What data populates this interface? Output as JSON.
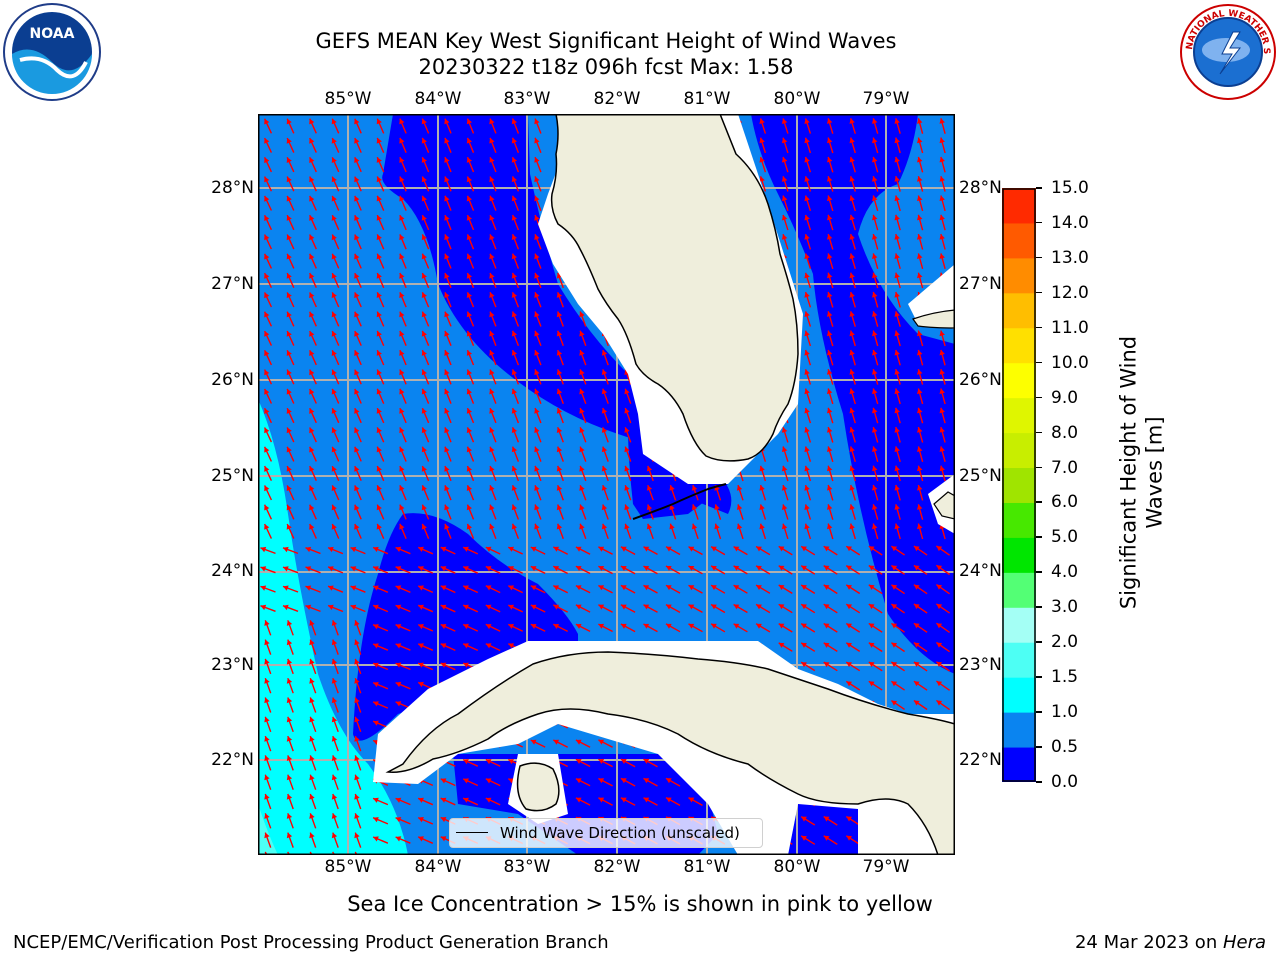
{
  "title": {
    "line1": "GEFS MEAN Key West Significant Height of Wind Waves",
    "line2": "20230322 t18z 096h fcst   Max: 1.58"
  },
  "map": {
    "lon_ticks": [
      "85°W",
      "84°W",
      "83°W",
      "82°W",
      "81°W",
      "80°W",
      "79°W"
    ],
    "lat_ticks": [
      "28°N",
      "27°N",
      "26°N",
      "25°N",
      "24°N",
      "23°N",
      "22°N"
    ],
    "legend_label": "Wind Wave Direction (unscaled)"
  },
  "colorbar": {
    "label_line1": "Significant Height of Wind",
    "label_line2": "Waves [m]",
    "ticks": [
      "0.0",
      "0.5",
      "1.0",
      "1.5",
      "2.0",
      "3.0",
      "4.0",
      "5.0",
      "6.0",
      "7.0",
      "8.0",
      "9.0",
      "10.0",
      "11.0",
      "12.0",
      "13.0",
      "14.0",
      "15.0"
    ],
    "colors": [
      "#0000ff",
      "#0a84f0",
      "#00ffff",
      "#4dfff4",
      "#a4fff5",
      "#53ff75",
      "#00e600",
      "#47e800",
      "#a0e400",
      "#c8ee00",
      "#dff600",
      "#fdff00",
      "#ffe000",
      "#ffbe00",
      "#ff8c00",
      "#ff5a00",
      "#ff2a00",
      "#ff0000"
    ]
  },
  "colors": {
    "land": "#efeedc",
    "arrow": "#ff0000",
    "grid": "#b0b0b0"
  },
  "logos": {
    "left_text": "NOAA",
    "right_text": "NATIONAL WEATHER SERVICE"
  },
  "note": "Sea Ice Concentration > 15% is shown in pink to yellow",
  "footer": {
    "left": "NCEP/EMC/Verification Post Processing Product Generation Branch",
    "right_date": "24 Mar 2023 on ",
    "right_host": "Hera"
  }
}
